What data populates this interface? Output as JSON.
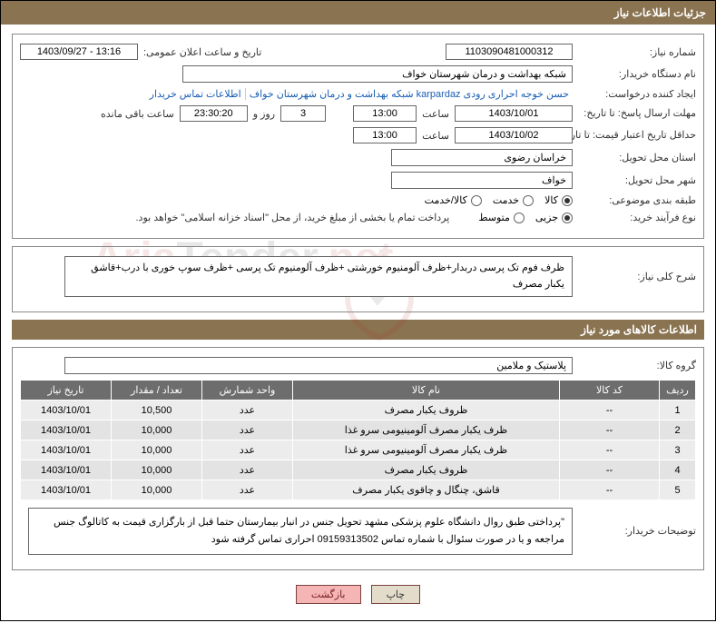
{
  "title": "جزئیات اطلاعات نیاز",
  "fields": {
    "need_number_lbl": "شماره نیاز:",
    "need_number": "1103090481000312",
    "announce_date_lbl": "تاریخ و ساعت اعلان عمومی:",
    "announce_date": "1403/09/27 - 13:16",
    "buyer_org_lbl": "نام دستگاه خریدار:",
    "buyer_org": "شبکه بهداشت و درمان شهرستان خواف",
    "requester_lbl": "ایجاد کننده درخواست:",
    "requester": "حسن خوجه احراری رودی karpardaz شبکه بهداشت و درمان شهرستان خواف",
    "contact_link": "اطلاعات تماس خریدار",
    "deadline_lbl": "مهلت ارسال پاسخ: تا تاریخ:",
    "deadline_date": "1403/10/01",
    "time_lbl": "ساعت",
    "deadline_time": "13:00",
    "remain_days": "3",
    "days_and_lbl": "روز و",
    "remain_time": "23:30:20",
    "remain_suffix": "ساعت باقی مانده",
    "validity_lbl": "حداقل تاریخ اعتبار قیمت: تا تاریخ:",
    "validity_date": "1403/10/02",
    "validity_time": "13:00",
    "province_lbl": "استان محل تحویل:",
    "province": "خراسان رضوی",
    "city_lbl": "شهر محل تحویل:",
    "city": "خواف",
    "category_lbl": "طبقه بندی موضوعی:",
    "cat_goods": "کالا",
    "cat_service": "خدمت",
    "cat_both": "کالا/خدمت",
    "process_lbl": "نوع فرآیند خرید:",
    "proc_partial": "جزیی",
    "proc_medium": "متوسط",
    "payment_note": "پرداخت تمام یا بخشی از مبلغ خرید، از محل \"اسناد خزانه اسلامی\" خواهد بود.",
    "need_desc_lbl": "شرح کلی نیاز:",
    "need_desc": "ظرف فوم تک پرسی دربدار+ظرف آلومنیوم خورشتی +ظرف آلومنیوم  تک پرسی +ظرف سوپ خوری با درب+قاشق یکبار مصرف",
    "items_section": "اطلاعات کالاهای مورد نیاز",
    "group_lbl": "گروه کالا:",
    "group": "پلاستیک و ملامین",
    "buyer_notes_lbl": "توضیحات خریدار:",
    "buyer_notes": "\"پرداختی طبق روال دانشگاه علوم پزشکی مشهد تحویل جنس در انبار بیمارستان  حتما قبل از بارگزاری قیمت به کاتالوگ جنس مراجعه و یا در صورت سئوال با  شماره تماس 09159313502 احراری تماس گرفته شود",
    "btn_print": "چاپ",
    "btn_back": "بازگشت"
  },
  "table": {
    "headers": [
      "ردیف",
      "کد کالا",
      "نام کالا",
      "واحد شمارش",
      "تعداد / مقدار",
      "تاریخ نیاز"
    ],
    "rows": [
      [
        "1",
        "--",
        "ظروف یکبار مصرف",
        "عدد",
        "10,500",
        "1403/10/01"
      ],
      [
        "2",
        "--",
        "ظرف یکبار مصرف آلومینیومی سرو غذا",
        "عدد",
        "10,000",
        "1403/10/01"
      ],
      [
        "3",
        "--",
        "ظرف یکبار مصرف آلومینیومی سرو غذا",
        "عدد",
        "10,000",
        "1403/10/01"
      ],
      [
        "4",
        "--",
        "ظروف یکبار مصرف",
        "عدد",
        "10,000",
        "1403/10/01"
      ],
      [
        "5",
        "--",
        "قاشق، چنگال و چاقوی یکبار مصرف",
        "عدد",
        "10,000",
        "1403/10/01"
      ]
    ],
    "col_widths": [
      "40px",
      "110px",
      "auto",
      "100px",
      "100px",
      "100px"
    ]
  },
  "colors": {
    "header_bg": "#8a7350",
    "th_bg": "#6d6d6d",
    "td_bg": "#ececec"
  }
}
